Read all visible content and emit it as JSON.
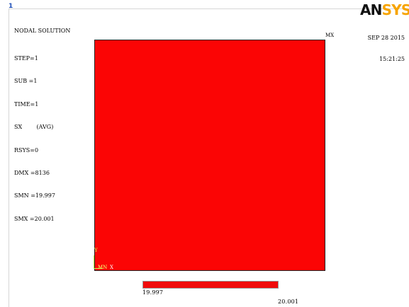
{
  "header": {
    "window_number": "1"
  },
  "results_legend": {
    "title": "NODAL SOLUTION",
    "lines": [
      "STEP=1",
      "SUB =1",
      "TIME=1",
      "SX        (AVG)",
      "RSYS=0",
      "DMX =8136",
      "SMN =19.997",
      "SMX =20.001"
    ]
  },
  "branding": {
    "logo_text": "ANSYS",
    "logo_part_1": "AN",
    "logo_part_2": "SYS",
    "logo_colors": {
      "an": "#111111",
      "sys": "#f7a400"
    }
  },
  "timestamp": {
    "date": "SEP 28 2015",
    "time": "15:21:25"
  },
  "plot": {
    "mx_label": "MX",
    "plate_color": "#fb0505"
  },
  "axis_triad": {
    "y_label": "Y",
    "mn_label": "MN",
    "x_label": "X"
  },
  "colorbar": {
    "min_label": "19.997",
    "max_label": "20.001",
    "fill_color": "#f00b0b"
  },
  "icons": {
    "logo": "ansys-logo-icon",
    "triad": "coordinate-triad-icon"
  }
}
